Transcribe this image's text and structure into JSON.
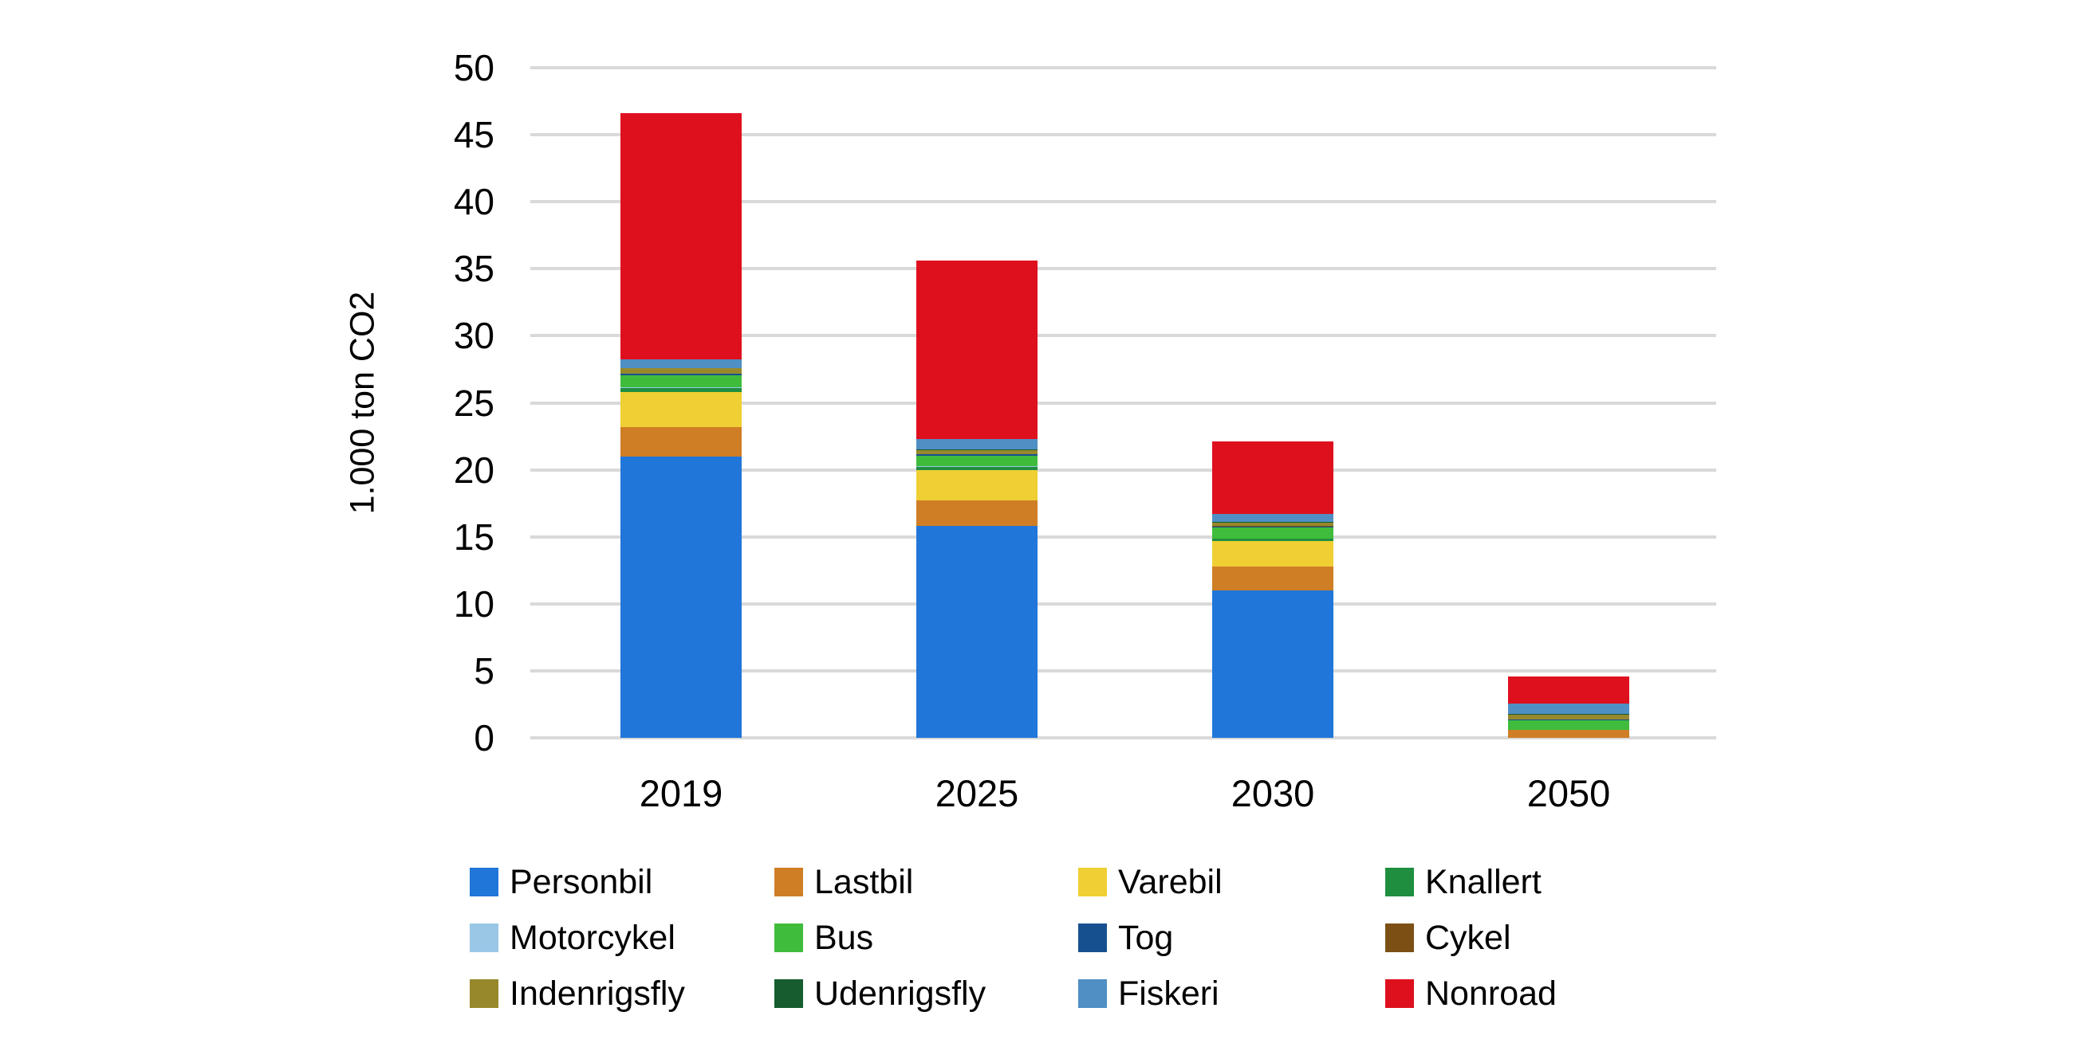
{
  "figure": {
    "background_color": "#ffffff",
    "gridline_color": "#d9d9d9",
    "text_color": "#000000"
  },
  "chart_data": {
    "type": "bar",
    "stacked": true,
    "title": "",
    "xlabel": "",
    "ylabel": "1.000 ton CO2",
    "categories": [
      "2019",
      "2025",
      "2030",
      "2050"
    ],
    "series": [
      {
        "name": "Personbil",
        "color": "#2176d9",
        "values": [
          21.0,
          15.8,
          11.0,
          0.0
        ]
      },
      {
        "name": "Lastbil",
        "color": "#d07e26",
        "values": [
          2.2,
          1.9,
          1.8,
          0.6
        ]
      },
      {
        "name": "Varebil",
        "color": "#efcf33",
        "values": [
          2.6,
          2.3,
          1.9,
          0.0
        ]
      },
      {
        "name": "Knallert",
        "color": "#1f8f3f",
        "values": [
          0.3,
          0.2,
          0.15,
          0.02
        ]
      },
      {
        "name": "Motorcykel",
        "color": "#9ac7e6",
        "values": [
          0.05,
          0.05,
          0.03,
          0.0
        ]
      },
      {
        "name": "Bus",
        "color": "#3fbc3c",
        "values": [
          0.9,
          0.8,
          0.8,
          0.7
        ]
      },
      {
        "name": "Tog",
        "color": "#17508f",
        "values": [
          0.1,
          0.1,
          0.1,
          0.05
        ]
      },
      {
        "name": "Cykel",
        "color": "#7c5015",
        "values": [
          0.02,
          0.02,
          0.02,
          0.02
        ]
      },
      {
        "name": "Indenrigsfly",
        "color": "#97892b",
        "values": [
          0.4,
          0.3,
          0.25,
          0.35
        ]
      },
      {
        "name": "Udenrigsfly",
        "color": "#165c2e",
        "values": [
          0.05,
          0.05,
          0.05,
          0.05
        ]
      },
      {
        "name": "Fiskeri",
        "color": "#4f8fc4",
        "values": [
          0.6,
          0.8,
          0.6,
          0.8
        ]
      },
      {
        "name": "Nonroad",
        "color": "#df101e",
        "values": [
          18.4,
          13.3,
          5.4,
          2.0
        ]
      }
    ],
    "approx_totals": [
      46.6,
      35.6,
      22.0,
      4.6
    ],
    "ylim": [
      0,
      50
    ],
    "yticks": [
      0,
      5,
      10,
      15,
      20,
      25,
      30,
      35,
      40,
      45,
      50
    ],
    "grid": "horizontal",
    "legend_position": "bottom",
    "legend_rows": 3,
    "legend_columns": 4,
    "legend_order": [
      "Personbil",
      "Lastbil",
      "Varebil",
      "Knallert",
      "Motorcykel",
      "Bus",
      "Tog",
      "Cykel",
      "Indenrigsfly",
      "Udenrigsfly",
      "Fiskeri",
      "Nonroad"
    ]
  }
}
